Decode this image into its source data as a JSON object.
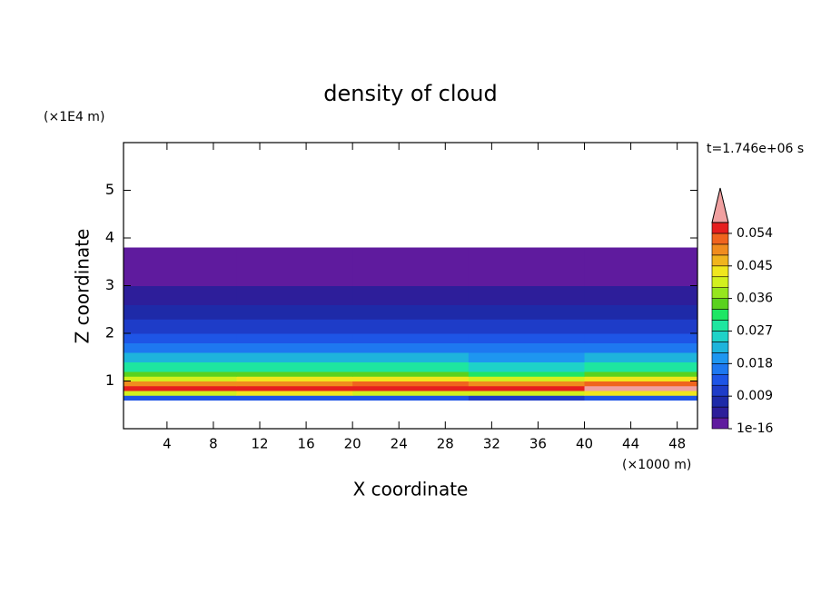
{
  "chart_data": {
    "type": "contour",
    "title": "density of cloud",
    "time_label": "t=1.746e+06 s",
    "x_label": "X coordinate",
    "x_unit": "(×1000 m)",
    "y_label": "Z coordinate",
    "y_unit": "(×1E4 m)",
    "xlim": [
      0.25,
      49.75
    ],
    "xticks": [
      4,
      8,
      12,
      16,
      20,
      24,
      28,
      32,
      36,
      40,
      44,
      48
    ],
    "ylim": [
      0,
      6
    ],
    "yticks": [
      1,
      2,
      3,
      4,
      5
    ],
    "x_edges": [
      0.25,
      10,
      20,
      30,
      40,
      49.75
    ],
    "y_edges": [
      0.6,
      0.7,
      0.8,
      0.9,
      1.0,
      1.1,
      1.2,
      1.4,
      1.6,
      1.8,
      2.0,
      2.3,
      2.6,
      3.0,
      3.4,
      3.8
    ],
    "values": [
      [
        0.012,
        0.013,
        0.012,
        0.011,
        0.012
      ],
      [
        0.04,
        0.042,
        0.041,
        0.039,
        0.043
      ],
      [
        0.055,
        0.054,
        0.056,
        0.055,
        0.057
      ],
      [
        0.05,
        0.048,
        0.051,
        0.049,
        0.052
      ],
      [
        0.04,
        0.042,
        0.043,
        0.04,
        0.044
      ],
      [
        0.033,
        0.034,
        0.035,
        0.032,
        0.035
      ],
      [
        0.028,
        0.027,
        0.029,
        0.026,
        0.028
      ],
      [
        0.022,
        0.021,
        0.023,
        0.02,
        0.022
      ],
      [
        0.016,
        0.015,
        0.017,
        0.016,
        0.016
      ],
      [
        0.013,
        0.012,
        0.014,
        0.013,
        0.014
      ],
      [
        0.011,
        0.01,
        0.01,
        0.009,
        0.011
      ],
      [
        0.008,
        0.007,
        0.008,
        0.007,
        0.008
      ],
      [
        0.005,
        0.005,
        0.004,
        0.004,
        0.005
      ],
      [
        0.002,
        0.002,
        0.001,
        0.002,
        0.002
      ],
      [
        0.001,
        0.001,
        0.001,
        0.001,
        0.001
      ]
    ],
    "colorbar": {
      "levels": [
        1e-16,
        0.003,
        0.006,
        0.009,
        0.012,
        0.015,
        0.018,
        0.021,
        0.024,
        0.027,
        0.03,
        0.033,
        0.036,
        0.039,
        0.042,
        0.045,
        0.048,
        0.051,
        0.054,
        0.057
      ],
      "colors": [
        "#5f1b9e",
        "#2d1e9a",
        "#1e2aa8",
        "#1e3cc8",
        "#1e55e6",
        "#1e78f0",
        "#1e96f0",
        "#1eb4dc",
        "#1ed2c8",
        "#1ee6a0",
        "#1ee664",
        "#5ad21e",
        "#96e61e",
        "#d2f01e",
        "#f0e61e",
        "#f0b41e",
        "#f08c1e",
        "#f0641e",
        "#e61e1e"
      ],
      "extend_color": "#f0a0a0",
      "ticks": [
        1e-16,
        0.009,
        0.018,
        0.027,
        0.036,
        0.045,
        0.054
      ]
    }
  }
}
